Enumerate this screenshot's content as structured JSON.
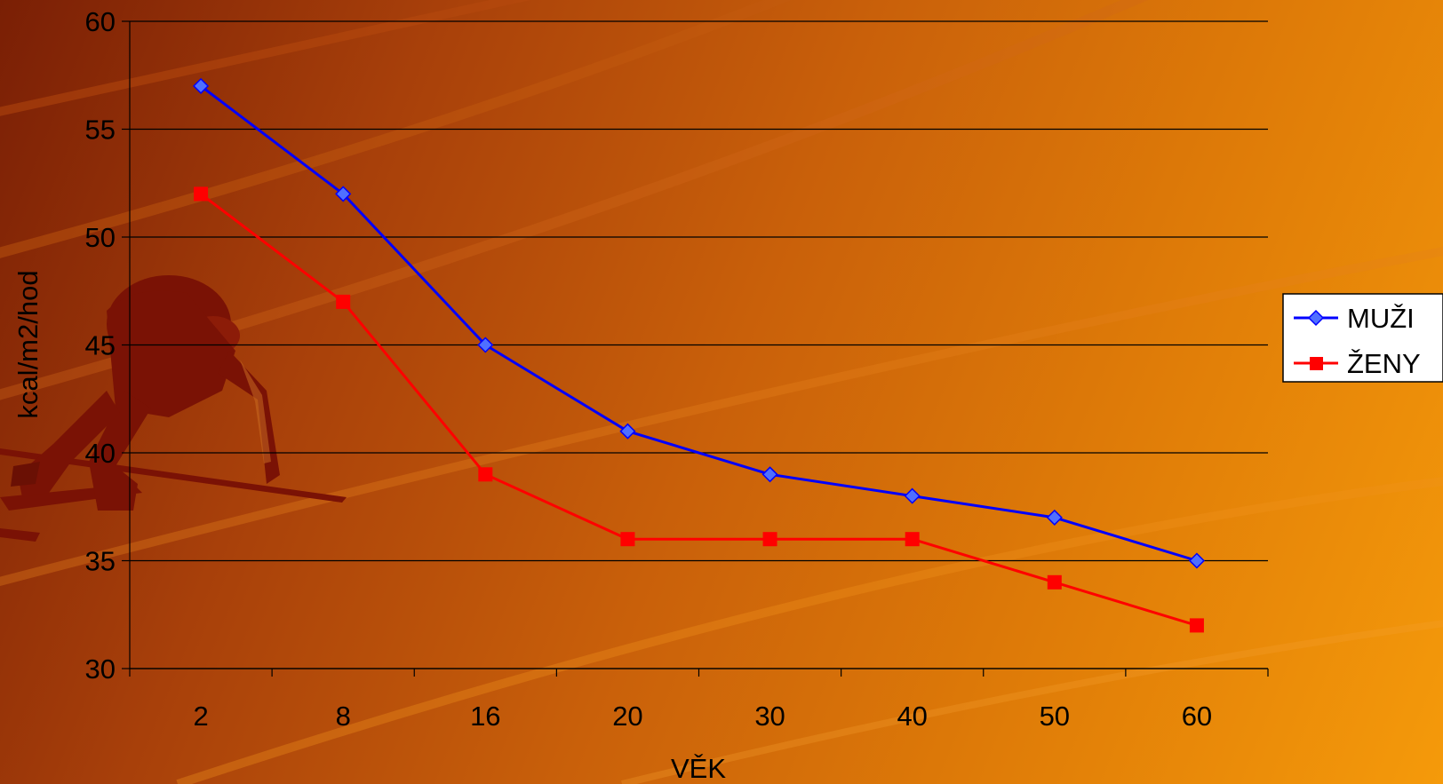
{
  "chart_data": {
    "type": "line",
    "categories": [
      "2",
      "8",
      "16",
      "20",
      "30",
      "40",
      "50",
      "60"
    ],
    "series": [
      {
        "name": "MUŽI",
        "values": [
          57,
          52,
          45,
          41,
          39,
          38,
          37,
          35
        ],
        "color": "#0000ff",
        "marker": "diamond",
        "marker_fill": "#4f6fff"
      },
      {
        "name": "ŽENY",
        "values": [
          52,
          47,
          39,
          36,
          36,
          36,
          34,
          32
        ],
        "color": "#ff0000",
        "marker": "square",
        "marker_fill": "#ff0000"
      }
    ],
    "title": "",
    "xlabel": "VĚK",
    "ylabel": "kcal/m2/hod",
    "ylim": [
      30,
      60
    ],
    "yticks": [
      "30",
      "35",
      "40",
      "45",
      "50",
      "55",
      "60"
    ],
    "grid": true,
    "legend_position": "right"
  },
  "theme": {
    "background": [
      "#7a1f05",
      "#f59a0a"
    ],
    "runner_color": "#7a1205"
  }
}
